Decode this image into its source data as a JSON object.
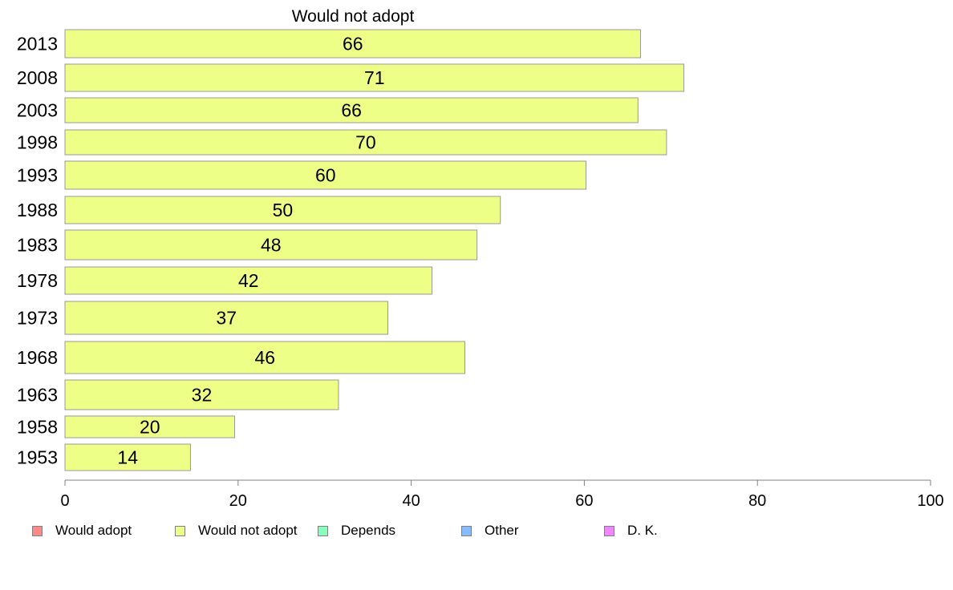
{
  "chart_data": {
    "type": "bar",
    "orientation": "horizontal",
    "title": "Would not adopt",
    "categories": [
      "2013",
      "2008",
      "2003",
      "1998",
      "1993",
      "1988",
      "1983",
      "1978",
      "1973",
      "1968",
      "1963",
      "1958",
      "1953"
    ],
    "series": [
      {
        "name": "Would not adopt",
        "color": "#EEFF88",
        "values": [
          66.5,
          71.5,
          66.2,
          69.5,
          60.2,
          50.3,
          47.6,
          42.4,
          37.3,
          46.2,
          31.6,
          19.6,
          14.5
        ],
        "labels": [
          "66",
          "71",
          "66",
          "70",
          "60",
          "50",
          "48",
          "42",
          "37",
          "46",
          "32",
          "20",
          "14"
        ]
      }
    ],
    "xlim": [
      0,
      100
    ],
    "xticks": [
      "0",
      "20",
      "40",
      "60",
      "80",
      "100"
    ],
    "grid": false,
    "legend": {
      "placement": "bottom",
      "items": [
        {
          "label": "Would adopt",
          "color": "#FF8888"
        },
        {
          "label": "Would not adopt",
          "color": "#EEFF88"
        },
        {
          "label": "Depends",
          "color": "#88FFBB"
        },
        {
          "label": "Other",
          "color": "#88BBFF"
        },
        {
          "label": "D. K.",
          "color": "#EE88FF"
        }
      ]
    },
    "colors": {
      "bar_stroke": "#999999",
      "axis": "#808080"
    }
  }
}
